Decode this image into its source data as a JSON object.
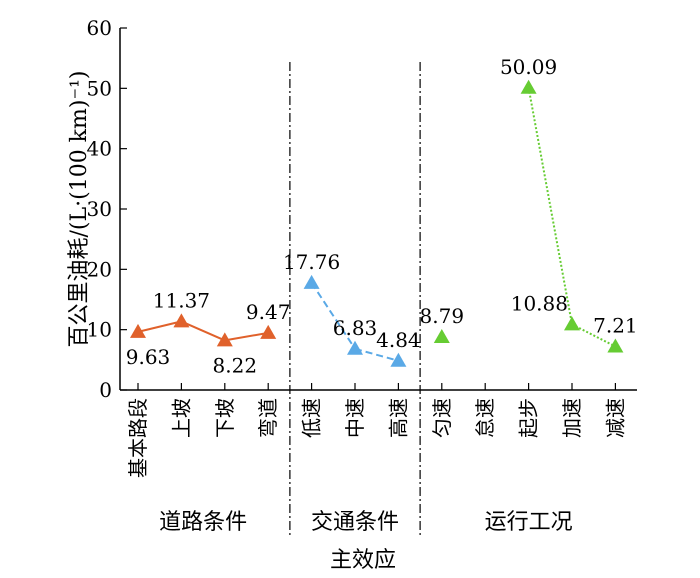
{
  "chart_data": {
    "type": "line",
    "ylabel": "百公里油耗/(L·(100 km)⁻¹)",
    "xlabel": "主效应",
    "ylim": [
      0,
      60
    ],
    "yticks": [
      0,
      10,
      20,
      30,
      40,
      50,
      60
    ],
    "grid": false,
    "categories": [
      "基本路段",
      "上坡",
      "下坡",
      "弯道",
      "低速",
      "中速",
      "高速",
      "匀速",
      "怠速",
      "起步",
      "加速",
      "减速"
    ],
    "groups": [
      {
        "name": "道路条件",
        "categories": [
          "基本路段",
          "上坡",
          "下坡",
          "弯道"
        ]
      },
      {
        "name": "交通条件",
        "categories": [
          "低速",
          "中速",
          "高速"
        ]
      },
      {
        "name": "运行工况",
        "categories": [
          "匀速",
          "怠速",
          "起步",
          "加速",
          "减速"
        ]
      }
    ],
    "series": [
      {
        "group": "道路条件",
        "color": "#e0612b",
        "line_style": "solid",
        "marker": "triangle",
        "points": [
          {
            "x": "基本路段",
            "y": 9.63,
            "label": "9.63",
            "label_pos": "below"
          },
          {
            "x": "上坡",
            "y": 11.37,
            "label": "11.37",
            "label_pos": "above"
          },
          {
            "x": "下坡",
            "y": 8.22,
            "label": "8.22",
            "label_pos": "below"
          },
          {
            "x": "弯道",
            "y": 9.47,
            "label": "9.47",
            "label_pos": "above"
          }
        ]
      },
      {
        "group": "交通条件",
        "color": "#5aa9e6",
        "line_style": "dashed",
        "marker": "triangle",
        "points": [
          {
            "x": "低速",
            "y": 17.76,
            "label": "17.76",
            "label_pos": "above"
          },
          {
            "x": "中速",
            "y": 6.83,
            "label": "6.83",
            "label_pos": "above"
          },
          {
            "x": "高速",
            "y": 4.84,
            "label": "4.84",
            "label_pos": "above"
          }
        ]
      },
      {
        "group": "运行工况",
        "color": "#66cc33",
        "line_style": "dotted",
        "marker": "triangle",
        "points": [
          {
            "x": "匀速",
            "y": 8.79,
            "label": "8.79",
            "label_pos": "above",
            "connected": false
          },
          {
            "x": "起步",
            "y": 50.09,
            "label": "50.09",
            "label_pos": "above"
          },
          {
            "x": "加速",
            "y": 10.88,
            "label": "10.88",
            "label_pos": "above-left"
          },
          {
            "x": "减速",
            "y": 7.21,
            "label": "7.21",
            "label_pos": "above"
          }
        ]
      }
    ]
  }
}
